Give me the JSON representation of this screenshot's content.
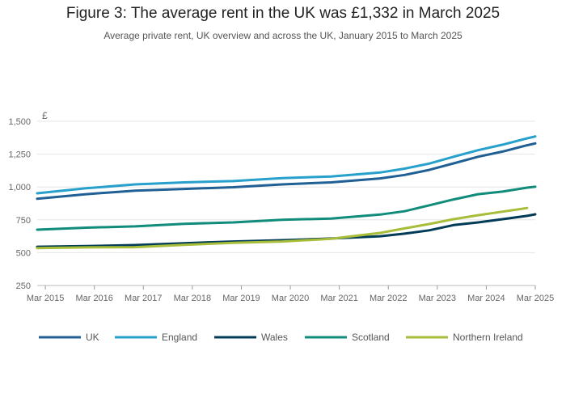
{
  "title": "Figure 3: The average rent in the UK was £1,332 in March 2025",
  "subtitle": "Average private rent, UK overview and across the UK, January 2015 to March 2025",
  "chart_data": {
    "type": "line",
    "unit_label": "£",
    "ylim": [
      250,
      1500
    ],
    "yticks": [
      250,
      500,
      750,
      1000,
      1250,
      1500
    ],
    "ytick_labels": [
      "250",
      "500",
      "750",
      "1,000",
      "1,250",
      "1,500"
    ],
    "xlim": [
      "2015-01",
      "2025-03"
    ],
    "xticks": [
      "2015-03",
      "2016-03",
      "2017-03",
      "2018-03",
      "2019-03",
      "2020-03",
      "2021-03",
      "2022-03",
      "2023-03",
      "2024-03",
      "2025-03"
    ],
    "xtick_labels": [
      "Mar 2015",
      "Mar 2016",
      "Mar 2017",
      "Mar 2018",
      "Mar 2019",
      "Mar 2020",
      "Mar 2021",
      "Mar 2022",
      "Mar 2023",
      "Mar 2024",
      "Mar 2025"
    ],
    "grid": "horizontal",
    "legend_position": "bottom",
    "series": [
      {
        "name": "UK",
        "color": "#206095",
        "x": [
          "2015-01",
          "2016-01",
          "2017-01",
          "2018-01",
          "2019-01",
          "2020-01",
          "2021-01",
          "2022-01",
          "2022-07",
          "2023-01",
          "2023-07",
          "2024-01",
          "2024-07",
          "2025-01",
          "2025-03"
        ],
        "values": [
          910,
          945,
          972,
          985,
          998,
          1020,
          1035,
          1065,
          1092,
          1130,
          1180,
          1230,
          1270,
          1318,
          1332
        ]
      },
      {
        "name": "England",
        "color": "#27a0cc",
        "x": [
          "2015-01",
          "2016-01",
          "2017-01",
          "2018-01",
          "2019-01",
          "2020-01",
          "2021-01",
          "2022-01",
          "2022-07",
          "2023-01",
          "2023-07",
          "2024-01",
          "2024-07",
          "2025-01",
          "2025-03"
        ],
        "values": [
          952,
          990,
          1020,
          1035,
          1045,
          1068,
          1080,
          1110,
          1140,
          1178,
          1230,
          1280,
          1322,
          1370,
          1385
        ]
      },
      {
        "name": "Wales",
        "color": "#003c57",
        "x": [
          "2015-01",
          "2016-01",
          "2017-01",
          "2018-01",
          "2019-01",
          "2020-01",
          "2021-01",
          "2022-01",
          "2022-07",
          "2023-01",
          "2023-07",
          "2024-01",
          "2024-07",
          "2025-01",
          "2025-03"
        ],
        "values": [
          545,
          550,
          558,
          572,
          585,
          595,
          608,
          625,
          645,
          670,
          710,
          730,
          755,
          780,
          792
        ]
      },
      {
        "name": "Scotland",
        "color": "#118c7b",
        "x": [
          "2015-01",
          "2016-01",
          "2017-01",
          "2018-01",
          "2019-01",
          "2020-01",
          "2021-01",
          "2022-01",
          "2022-07",
          "2023-01",
          "2023-07",
          "2024-01",
          "2024-07",
          "2025-01",
          "2025-03"
        ],
        "values": [
          675,
          690,
          700,
          720,
          730,
          750,
          760,
          790,
          815,
          860,
          905,
          945,
          965,
          995,
          1002
        ]
      },
      {
        "name": "Northern Ireland",
        "color": "#a8bd3a",
        "x": [
          "2015-01",
          "2016-01",
          "2017-01",
          "2018-01",
          "2019-01",
          "2020-01",
          "2021-01",
          "2022-01",
          "2022-07",
          "2023-01",
          "2023-07",
          "2024-01",
          "2024-07",
          "2025-01"
        ],
        "values": [
          535,
          540,
          542,
          560,
          575,
          585,
          605,
          650,
          685,
          718,
          755,
          785,
          812,
          840
        ]
      }
    ]
  }
}
